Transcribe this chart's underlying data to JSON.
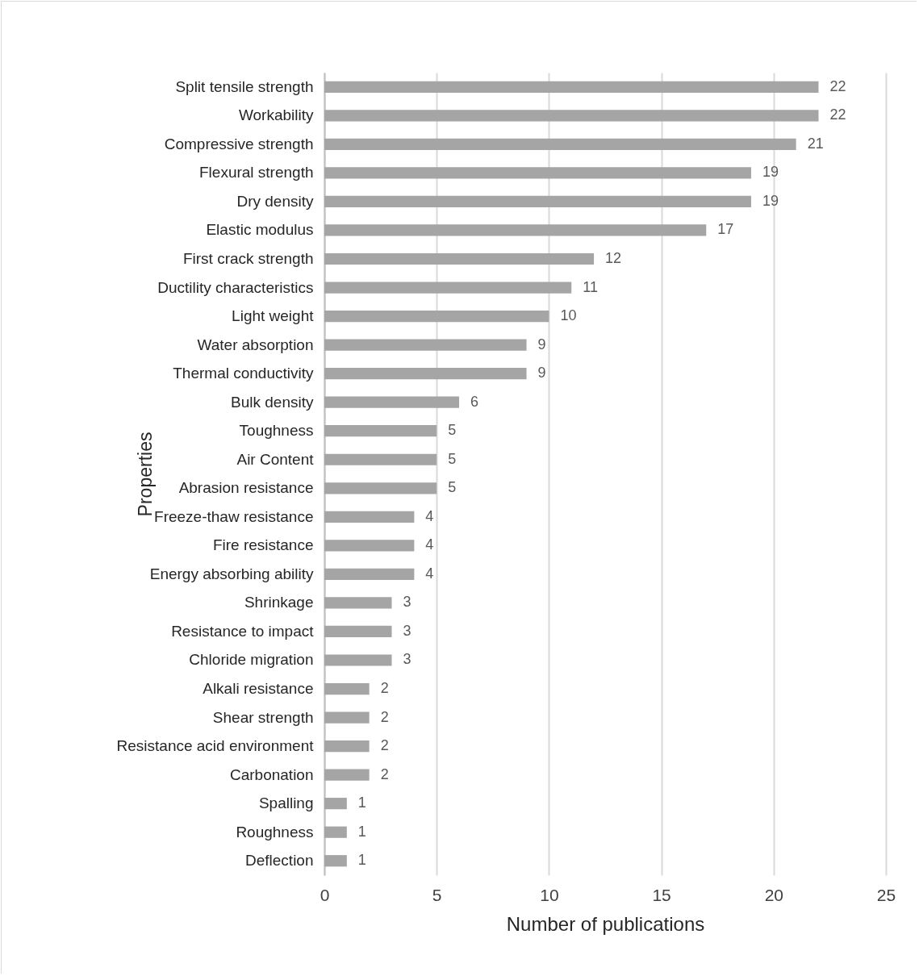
{
  "chart_data": {
    "type": "bar",
    "orientation": "horizontal",
    "xlabel": "Number of publications",
    "ylabel": "Properties",
    "categories": [
      "Split tensile strength",
      "Workability",
      "Compressive strength",
      "Flexural strength",
      "Dry density",
      "Elastic modulus",
      "First crack strength",
      "Ductility characteristics",
      "Light weight",
      "Water absorption",
      "Thermal conductivity",
      "Bulk density",
      "Toughness",
      "Air Content",
      "Abrasion resistance",
      "Freeze-thaw resistance",
      "Fire resistance",
      "Energy absorbing ability",
      "Shrinkage",
      "Resistance to impact",
      "Chloride migration",
      "Alkali resistance",
      "Shear strength",
      "Resistance acid environment",
      "Carbonation",
      "Spalling",
      "Roughness",
      "Deflection"
    ],
    "values": [
      22,
      22,
      21,
      19,
      19,
      17,
      12,
      11,
      10,
      9,
      9,
      6,
      5,
      5,
      5,
      4,
      4,
      4,
      3,
      3,
      3,
      2,
      2,
      2,
      2,
      1,
      1,
      1
    ],
    "color": "#a5a5a5",
    "xlim": [
      0,
      25
    ],
    "xticks": [
      0,
      5,
      10,
      15,
      20,
      25
    ],
    "grid": "x",
    "data_labels": true
  }
}
